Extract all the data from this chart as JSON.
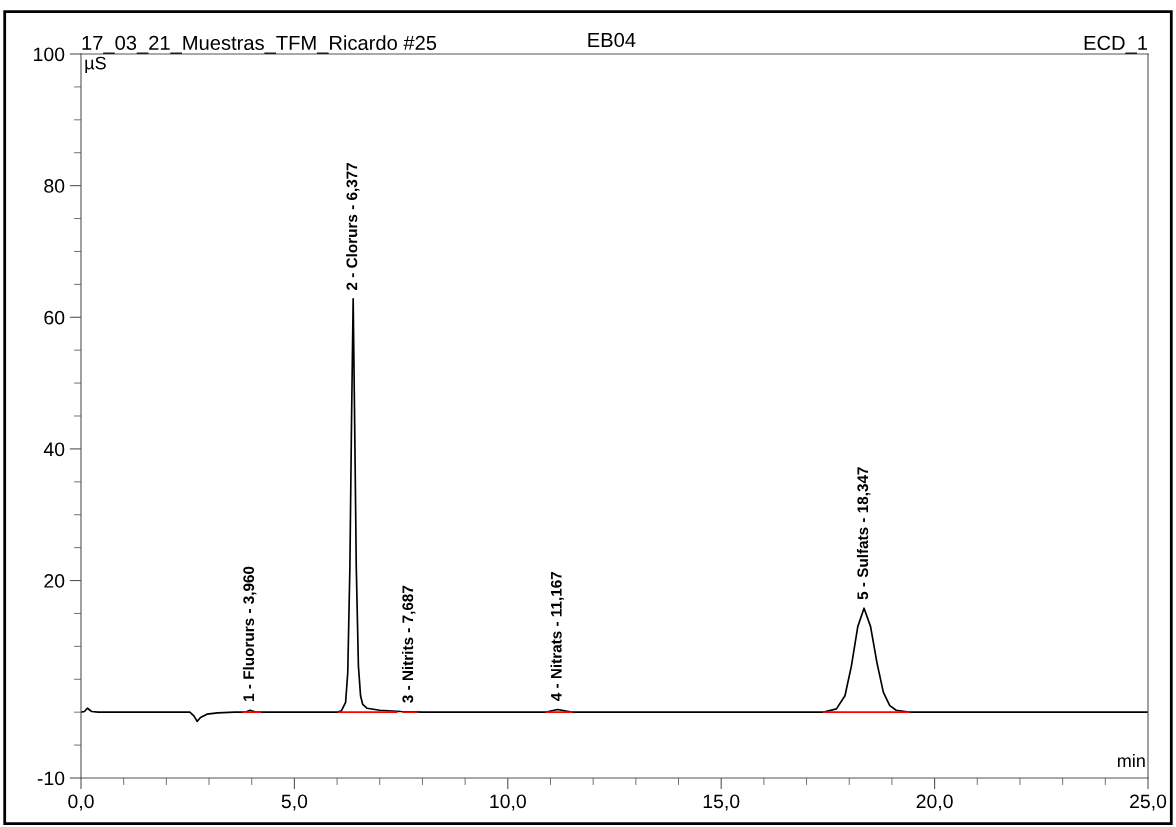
{
  "chart_data": {
    "type": "line",
    "title": "17_03_21_Muestras_TFM_Ricardo #25",
    "subtitle": "EB04",
    "xlabel": "min",
    "ylabel": "µS",
    "xlim": [
      0,
      25
    ],
    "ylim": [
      -10,
      100
    ],
    "xticks": [
      {
        "value": 0,
        "label": "0,0"
      },
      {
        "value": 1,
        "label": null
      },
      {
        "value": 2,
        "label": null
      },
      {
        "value": 3,
        "label": null
      },
      {
        "value": 4,
        "label": null
      },
      {
        "value": 5,
        "label": "5,0"
      },
      {
        "value": 6,
        "label": null
      },
      {
        "value": 7,
        "label": null
      },
      {
        "value": 8,
        "label": null
      },
      {
        "value": 9,
        "label": null
      },
      {
        "value": 10,
        "label": "10,0"
      },
      {
        "value": 11,
        "label": null
      },
      {
        "value": 12,
        "label": null
      },
      {
        "value": 13,
        "label": null
      },
      {
        "value": 14,
        "label": null
      },
      {
        "value": 15,
        "label": "15,0"
      },
      {
        "value": 16,
        "label": null
      },
      {
        "value": 17,
        "label": null
      },
      {
        "value": 18,
        "label": null
      },
      {
        "value": 19,
        "label": null
      },
      {
        "value": 20,
        "label": "20,0"
      },
      {
        "value": 21,
        "label": null
      },
      {
        "value": 22,
        "label": null
      },
      {
        "value": 23,
        "label": null
      },
      {
        "value": 24,
        "label": null
      },
      {
        "value": 25,
        "label": "25,0"
      }
    ],
    "yticks": [
      -10,
      {
        "value": -5,
        "label": null
      },
      {
        "value": 0,
        "label": null
      },
      {
        "value": 5,
        "label": null
      },
      {
        "value": 10,
        "label": null
      },
      {
        "value": 15,
        "label": null
      },
      20,
      {
        "value": 25,
        "label": null
      },
      {
        "value": 30,
        "label": null
      },
      {
        "value": 35,
        "label": null
      },
      40,
      {
        "value": 45,
        "label": null
      },
      {
        "value": 50,
        "label": null
      },
      {
        "value": 55,
        "label": null
      },
      60,
      {
        "value": 65,
        "label": null
      },
      {
        "value": 70,
        "label": null
      },
      {
        "value": 75,
        "label": null
      },
      80,
      {
        "value": 85,
        "label": null
      },
      {
        "value": 90,
        "label": null
      },
      {
        "value": 95,
        "label": null
      },
      100
    ],
    "grid": false,
    "legend": false,
    "marker": "none",
    "line_style": "solid",
    "series": [
      {
        "color": "#000000",
        "x": [
          0,
          0.08,
          0.15,
          0.25,
          0.4,
          1.0,
          2.0,
          2.55,
          2.65,
          2.72,
          2.8,
          2.95,
          3.2,
          3.6,
          3.85,
          3.96,
          4.1,
          4.5,
          5.5,
          6.0,
          6.1,
          6.2,
          6.25,
          6.3,
          6.34,
          6.377,
          6.41,
          6.45,
          6.5,
          6.55,
          6.6,
          6.7,
          7.0,
          7.5,
          8.0,
          9.0,
          10.0,
          10.9,
          11.167,
          11.5,
          12.5,
          14.0,
          15.5,
          16.5,
          17.4,
          17.7,
          17.9,
          18.05,
          18.2,
          18.347,
          18.5,
          18.65,
          18.8,
          18.95,
          19.1,
          19.4,
          20.5,
          22.0,
          23.5,
          25.0
        ],
        "values": [
          0,
          0.1,
          0.6,
          0.1,
          0,
          0,
          0,
          0,
          -0.6,
          -1.4,
          -0.8,
          -0.3,
          -0.1,
          0,
          0,
          0.3,
          0,
          0,
          0,
          0,
          0.2,
          1.5,
          6,
          22,
          45,
          62.8,
          45,
          22,
          7,
          2.5,
          1.2,
          0.6,
          0.3,
          0.1,
          0,
          0,
          0,
          0,
          0.4,
          0,
          0,
          0,
          0,
          0,
          0,
          0.5,
          2.5,
          7,
          13,
          15.8,
          13,
          7.5,
          3,
          1,
          0.3,
          0,
          0,
          0,
          0,
          0
        ]
      },
      {
        "color": "#ff0000",
        "x": [
          3.8,
          4.2,
          4.21,
          6.05,
          7.4,
          7.41,
          7.55,
          7.85,
          7.86,
          10.9,
          11.5,
          11.51,
          17.4,
          19.4
        ],
        "values": [
          0,
          0,
          null,
          0,
          0,
          null,
          0,
          0,
          null,
          0,
          0,
          null,
          0,
          0
        ]
      }
    ],
    "annotations": [
      "ECD_1",
      {
        "text": "1 - Fluorurs - 3,960",
        "x": 3.96,
        "y": 0.3
      },
      {
        "text": "2 - Clorurs - 6,377",
        "x": 6.377,
        "y": 62.8
      },
      {
        "text": "3 - Nitrits - 7,687",
        "x": 7.687,
        "y": 0.1
      },
      {
        "text": "4 - Nitrats - 11,167",
        "x": 11.167,
        "y": 0.4
      },
      {
        "text": "5 - Sulfats - 18,347",
        "x": 18.347,
        "y": 15.8
      }
    ]
  }
}
